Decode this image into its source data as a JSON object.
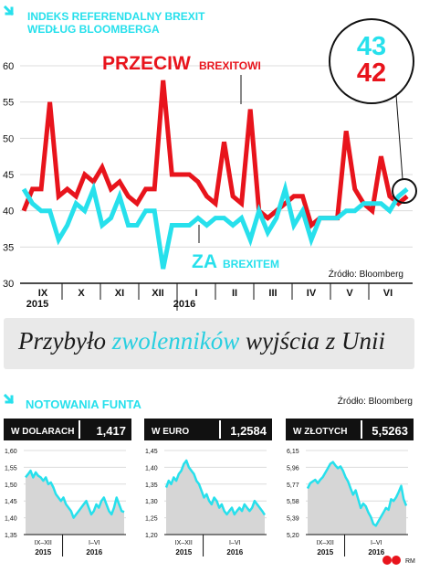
{
  "main": {
    "title_line1": "INDEKS REFERENDALNY BREXIT",
    "title_line2": "WEDŁUG BLOOMBERGA",
    "callout_top": "43",
    "callout_bottom": "42",
    "label_against_big": "PRZECIW",
    "label_against_small": "BREXITOWI",
    "label_for_big": "ZA",
    "label_for_small": "BREXITEM",
    "source": "Źródło: Bloomberg",
    "year_2015": "2015",
    "year_2016": "2016"
  },
  "banner": {
    "part1": "Przybyło ",
    "part2": "zwolenników",
    "part3": " wyjścia z Unii"
  },
  "section2": {
    "title": "NOTOWANIA FUNTA",
    "source": "Źródło: Bloomberg",
    "footer_logo": "RM"
  },
  "colors": {
    "against": "#e8141c",
    "for": "#27e0ec",
    "dark": "#111111",
    "grid": "#dcdcdc",
    "fill": "#d6d6d6"
  },
  "chart_data": [
    {
      "type": "line",
      "title": "INDEKS REFERENDALNY BREXIT WEDŁUG BLOOMBERGA",
      "x_tick_labels": [
        "IX",
        "X",
        "XI",
        "XII",
        "I",
        "II",
        "III",
        "IV",
        "V",
        "VI"
      ],
      "year_labels": [
        "2015",
        "2016"
      ],
      "ylim": [
        30,
        60
      ],
      "y_ticks": [
        30,
        35,
        40,
        45,
        50,
        55,
        60
      ],
      "grid": true,
      "series": [
        {
          "name": "PRZECIW BREXITOWI",
          "color": "#e8141c",
          "values": [
            40,
            43,
            43,
            55,
            42,
            43,
            42,
            45,
            44,
            46,
            43,
            44,
            42,
            41,
            43,
            43,
            58,
            45,
            45,
            45,
            44,
            42,
            41,
            49.5,
            42,
            41,
            54,
            40,
            39,
            40,
            41,
            42,
            42,
            38,
            39,
            39,
            39,
            51,
            43,
            41,
            40,
            47.5,
            42,
            41,
            42
          ]
        },
        {
          "name": "ZA BREXITEM",
          "color": "#27e0ec",
          "values": [
            43,
            41,
            40,
            40,
            36,
            38,
            41,
            40,
            43,
            38,
            39,
            42,
            38,
            38,
            40,
            40,
            32,
            38,
            38,
            38,
            39,
            38,
            39,
            39,
            38,
            39,
            36,
            40,
            37,
            39,
            43,
            38,
            40,
            36,
            39,
            39,
            39,
            40,
            40,
            41,
            41,
            41,
            40,
            42,
            43
          ]
        }
      ],
      "callout": {
        "top": 43,
        "bottom": 42
      }
    },
    {
      "type": "area",
      "header": "W DOLARACH",
      "value_label": "1,417",
      "ylim": [
        1.35,
        1.6
      ],
      "y_ticks": [
        "1,60",
        "1,55",
        "1,50",
        "1,45",
        "1,40",
        "1,35"
      ],
      "x_labels": [
        "IX–XII",
        "I–VI"
      ],
      "years": [
        "2015",
        "2016"
      ],
      "values": [
        1.52,
        1.53,
        1.54,
        1.52,
        1.535,
        1.525,
        1.52,
        1.51,
        1.52,
        1.5,
        1.505,
        1.49,
        1.47,
        1.46,
        1.45,
        1.46,
        1.44,
        1.43,
        1.42,
        1.4,
        1.41,
        1.42,
        1.43,
        1.44,
        1.45,
        1.43,
        1.41,
        1.42,
        1.44,
        1.43,
        1.45,
        1.46,
        1.44,
        1.42,
        1.41,
        1.43,
        1.46,
        1.44,
        1.42,
        1.417
      ]
    },
    {
      "type": "area",
      "header": "W EURO",
      "value_label": "1,2584",
      "ylim": [
        1.2,
        1.45
      ],
      "y_ticks": [
        "1,45",
        "1,40",
        "1,35",
        "1,30",
        "1,25",
        "1,20"
      ],
      "x_labels": [
        "IX–XII",
        "I–VI"
      ],
      "years": [
        "2015",
        "2016"
      ],
      "values": [
        1.34,
        1.36,
        1.35,
        1.37,
        1.36,
        1.38,
        1.39,
        1.41,
        1.42,
        1.4,
        1.39,
        1.38,
        1.36,
        1.35,
        1.33,
        1.31,
        1.32,
        1.3,
        1.29,
        1.31,
        1.3,
        1.28,
        1.29,
        1.27,
        1.26,
        1.27,
        1.28,
        1.26,
        1.27,
        1.28,
        1.27,
        1.29,
        1.28,
        1.27,
        1.28,
        1.3,
        1.29,
        1.28,
        1.27,
        1.2584
      ]
    },
    {
      "type": "area",
      "header": "W ZŁOTYCH",
      "value_label": "5,5263",
      "ylim": [
        5.2,
        6.15
      ],
      "y_ticks": [
        "6,15",
        "5,96",
        "5,77",
        "5,58",
        "5,39",
        "5,20"
      ],
      "x_labels": [
        "IX–XII",
        "I–VI"
      ],
      "years": [
        "2015",
        "2016"
      ],
      "values": [
        5.72,
        5.78,
        5.8,
        5.82,
        5.78,
        5.82,
        5.85,
        5.9,
        5.95,
        6.0,
        6.02,
        5.98,
        5.95,
        5.97,
        5.92,
        5.85,
        5.8,
        5.72,
        5.65,
        5.7,
        5.6,
        5.5,
        5.55,
        5.52,
        5.45,
        5.4,
        5.32,
        5.3,
        5.35,
        5.4,
        5.45,
        5.5,
        5.48,
        5.6,
        5.58,
        5.62,
        5.68,
        5.75,
        5.6,
        5.5263
      ]
    }
  ]
}
